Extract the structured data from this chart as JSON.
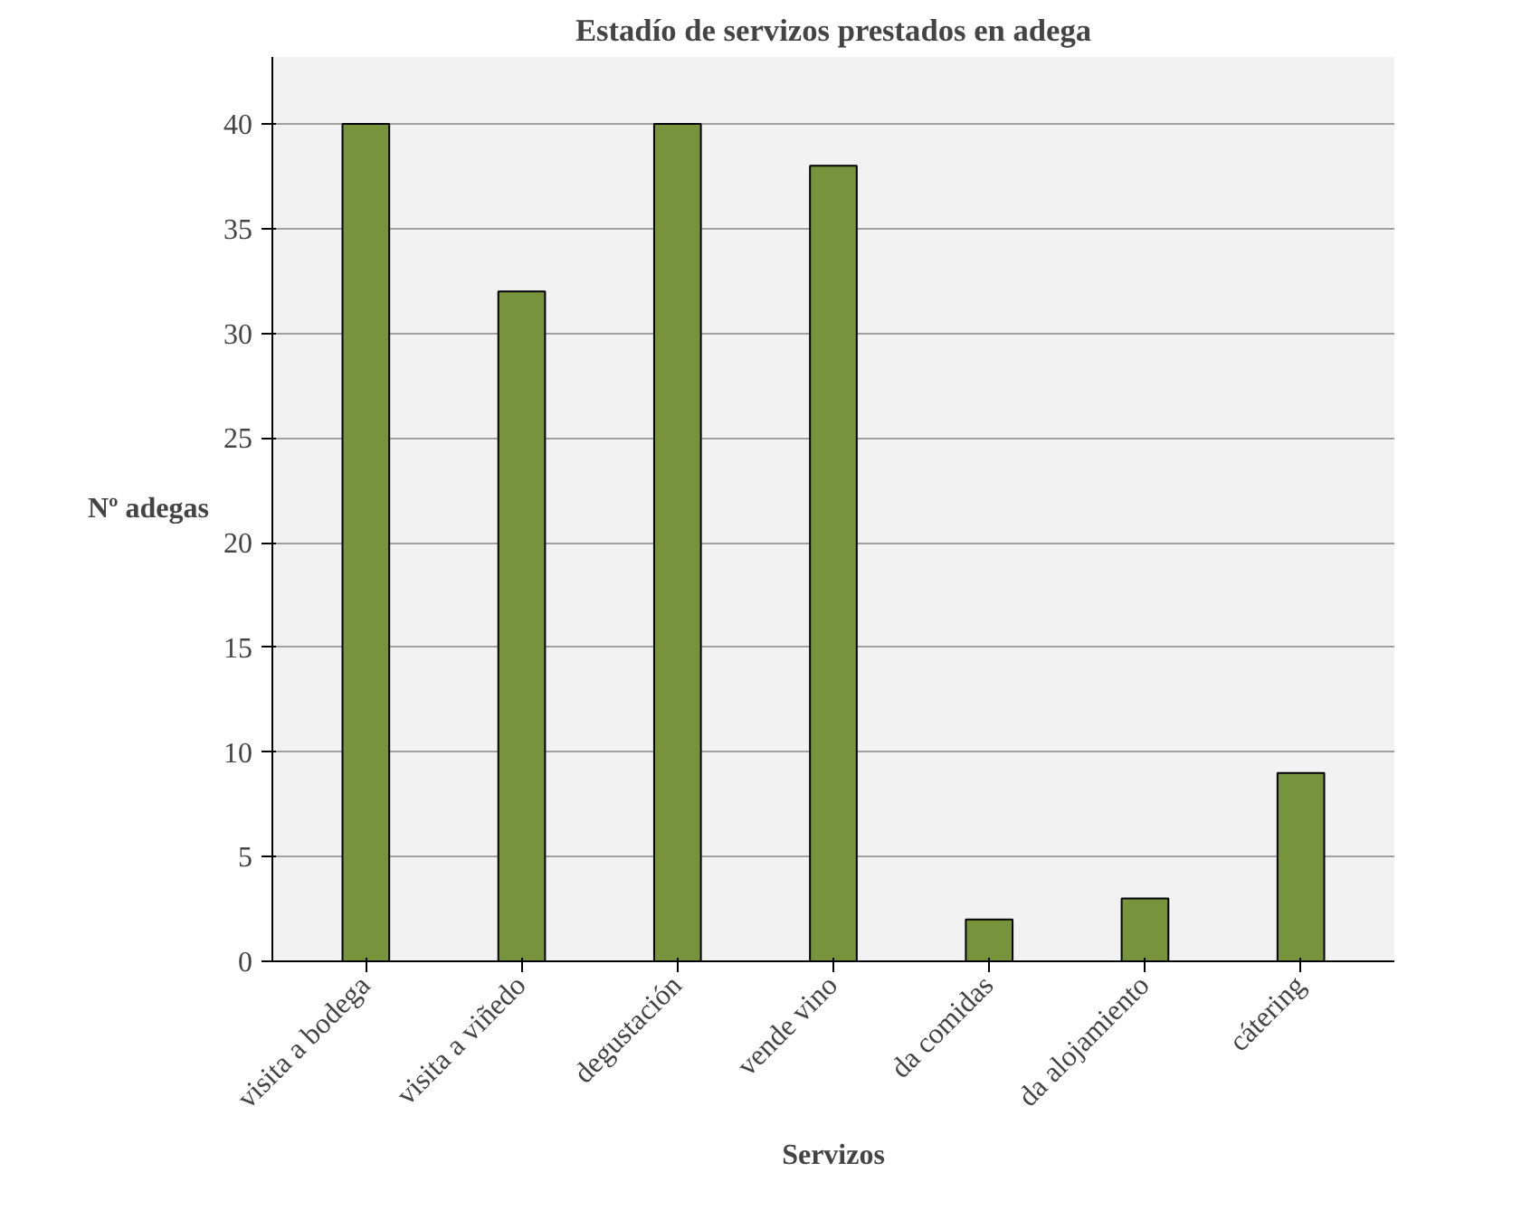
{
  "chart_data": {
    "type": "bar",
    "title": "Estadío de servizos prestados en adega",
    "xlabel": "Servizos",
    "ylabel": "Nº adegas",
    "categories": [
      "visita a bodega",
      "visita a viñedo",
      "degustación",
      "vende vino",
      "da comidas",
      "da alojamiento",
      "cátering"
    ],
    "values": [
      40,
      32,
      40,
      38,
      2,
      3,
      9
    ],
    "color": "#77933c",
    "ylim": [
      0,
      40
    ],
    "yticks": [
      0,
      5,
      10,
      15,
      20,
      25,
      30,
      35,
      40
    ],
    "grid": "y"
  }
}
